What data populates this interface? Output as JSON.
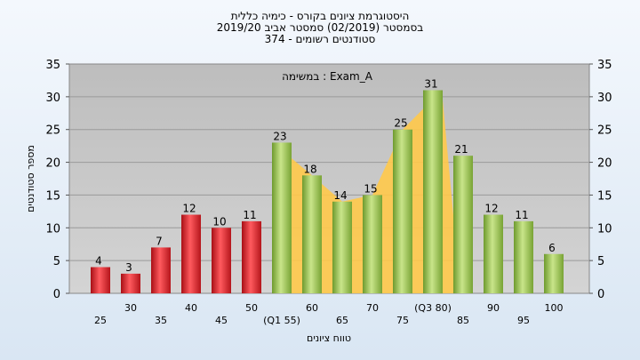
{
  "chart_data": {
    "type": "bar",
    "title": [
      "היסטוגרמת ציונים בקורס - כימיה כללית",
      "בסמסטר (02/2019) סמסטר אביב 2019/20",
      "סטודנטים רשומים - 374"
    ],
    "subtitle": "במשימה : Exam_A",
    "xlabel": "טווח ציונים",
    "ylabel": "מספר סטודנטים",
    "ylim": [
      0,
      35
    ],
    "yticks": [
      0,
      5,
      10,
      15,
      20,
      25,
      30,
      35
    ],
    "categories": [
      "25",
      "30",
      "35",
      "40",
      "45",
      "50",
      "(Q1 55)",
      "60",
      "65",
      "70",
      "75",
      "(Q3 80)",
      "85",
      "90",
      "95",
      "100"
    ],
    "values": [
      4,
      3,
      7,
      12,
      10,
      11,
      23,
      18,
      14,
      15,
      25,
      31,
      21,
      12,
      11,
      6
    ],
    "bar_colors": [
      "red",
      "red",
      "red",
      "red",
      "red",
      "red",
      "green",
      "green",
      "green",
      "green",
      "green",
      "green",
      "green",
      "green",
      "green",
      "green"
    ],
    "interquartile_band": {
      "from_category": "(Q1 55)",
      "to_category": "(Q3 80)"
    },
    "grid": true,
    "colors": {
      "red_bar": "#e0252b",
      "green_bar": "#8fbb46",
      "band": "#ffc94a",
      "plot_bg": "#c4c4c4"
    }
  }
}
